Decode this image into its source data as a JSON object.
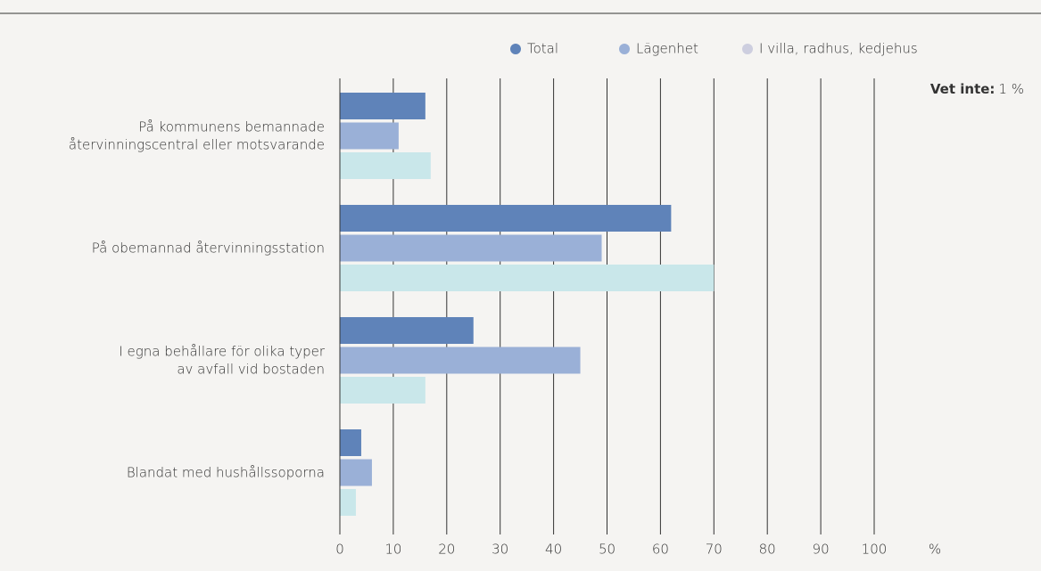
{
  "chart_data": {
    "type": "bar",
    "orientation": "horizontal",
    "categories": [
      [
        "På kommunens bemannade",
        "återvinningscentral eller motsvarande"
      ],
      [
        "På obemannad återvinningsstation"
      ],
      [
        "I egna behållare för olika typer",
        "av avfall vid bostaden"
      ],
      [
        "Blandat med hushållssoporna"
      ]
    ],
    "series": [
      {
        "name": "Total",
        "color": "#5f83b9",
        "legend_color": "#5f83b9",
        "values": [
          16,
          62,
          25,
          4
        ]
      },
      {
        "name": "Lägenhet",
        "color": "#9ab0d7",
        "legend_color": "#9ab0d7",
        "values": [
          11,
          49,
          45,
          6
        ]
      },
      {
        "name": "I villa, radhus, kedjehus",
        "color": "#c9e7ea",
        "legend_color": "#cdcedf",
        "values": [
          17,
          70,
          16,
          3
        ]
      }
    ],
    "xlim": [
      0,
      100
    ],
    "xticks": [
      0,
      10,
      20,
      30,
      40,
      50,
      60,
      70,
      80,
      90,
      100
    ],
    "xlabel": "%",
    "grid": true,
    "annotation": {
      "label": "Vet inte:",
      "text": "1 %"
    }
  }
}
